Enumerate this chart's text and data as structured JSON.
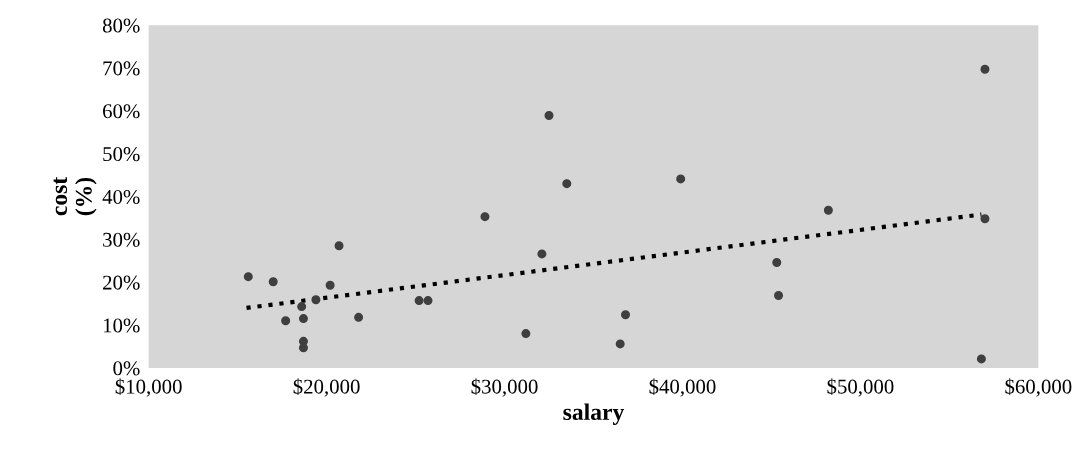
{
  "chart_data": {
    "type": "scatter",
    "xlabel": "salary",
    "ylabel": "cost\n(%)",
    "xlim": [
      10000,
      60000
    ],
    "xticks": [
      {
        "value": 10000,
        "label": "$10,000"
      },
      {
        "value": 20000,
        "label": "$20,000"
      },
      {
        "value": 30000,
        "label": "$30,000"
      },
      {
        "value": 40000,
        "label": "$40,000"
      },
      {
        "value": 50000,
        "label": "$50,000"
      },
      {
        "value": 60000,
        "label": "$60,000"
      }
    ],
    "ylim": [
      0,
      80
    ],
    "yticks": [
      {
        "value": 0,
        "label": "0%"
      },
      {
        "value": 10,
        "label": "10%"
      },
      {
        "value": 20,
        "label": "20%"
      },
      {
        "value": 30,
        "label": "30%"
      },
      {
        "value": 40,
        "label": "40%"
      },
      {
        "value": 50,
        "label": "50%"
      },
      {
        "value": 60,
        "label": "60%"
      },
      {
        "value": 70,
        "label": "70%"
      },
      {
        "value": 80,
        "label": "80%"
      }
    ],
    "grid": false,
    "legend": false,
    "series": [
      {
        "color": "#3f3f3f",
        "marker": "circle",
        "x": [
          15600,
          17000,
          17700,
          18600,
          18700,
          18700,
          18700,
          19400,
          20200,
          20700,
          21800,
          25200,
          25700,
          28900,
          31200,
          32100,
          32500,
          33500,
          36500,
          36800,
          39900,
          45300,
          45400,
          48200,
          57000,
          57000,
          56800
        ],
        "values": [
          21.3,
          20.1,
          11.0,
          14.3,
          11.5,
          6.2,
          4.7,
          15.9,
          19.3,
          28.5,
          11.8,
          15.7,
          15.7,
          35.3,
          8.0,
          26.6,
          58.9,
          43.0,
          5.6,
          12.4,
          44.1,
          24.6,
          16.9,
          36.8,
          69.7,
          34.8,
          2.1
        ]
      },
      {
        "type": "line",
        "color": "#000000",
        "line_style": "dotted",
        "marker": "none",
        "x": [
          15500,
          56800
        ],
        "values": [
          14.0,
          35.8
        ]
      }
    ]
  }
}
